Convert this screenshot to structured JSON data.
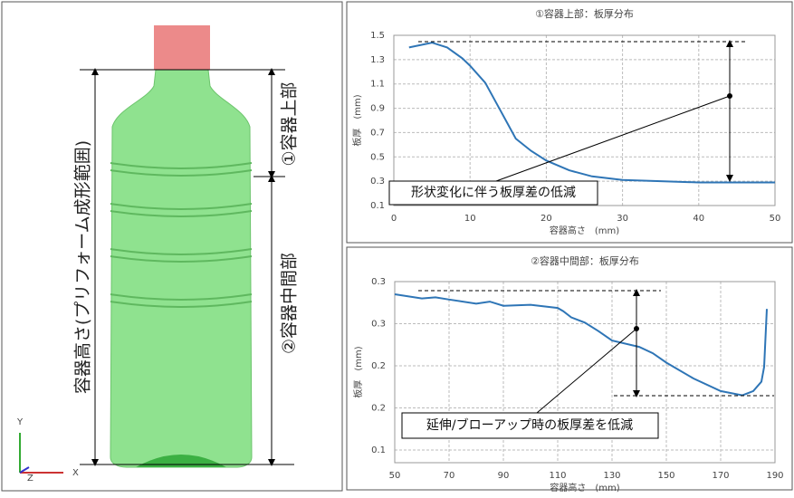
{
  "diagram": {
    "height_label": "容器高さ(プリフォーム成形範囲)",
    "upper_label": "①容器上部",
    "middle_label": "②容器中間部",
    "axis_y": "Y",
    "axis_x": "X",
    "axis_z": "Z"
  },
  "chart_data": [
    {
      "type": "line",
      "title": "①容器上部：板厚分布",
      "xlabel": "容器高さ　(mm)",
      "ylabel": "板厚　(mm)",
      "x": [
        2,
        5,
        7,
        9,
        10,
        12,
        14,
        16,
        18,
        20,
        23,
        26,
        30,
        35,
        40,
        45,
        50
      ],
      "values": [
        1.4,
        1.44,
        1.4,
        1.31,
        1.25,
        1.11,
        0.88,
        0.65,
        0.55,
        0.47,
        0.39,
        0.34,
        0.31,
        0.3,
        0.29,
        0.29,
        0.29
      ],
      "color": "#2e75b6",
      "xlim": [
        0,
        50
      ],
      "xticks": [
        0,
        10,
        20,
        30,
        40,
        50
      ],
      "ylim": [
        0.1,
        1.5
      ],
      "yticks": [
        0.1,
        0.3,
        0.5,
        0.7,
        0.9,
        1.1,
        1.3,
        1.5
      ],
      "grid": true,
      "annotation": "形状変化に伴う板厚差の低減"
    },
    {
      "type": "line",
      "title": "②容器中間部：板厚分布",
      "xlabel": "容器高さ　(mm)",
      "ylabel": "板厚　(mm)",
      "x": [
        50,
        60,
        65,
        70,
        80,
        85,
        90,
        100,
        110,
        112,
        115,
        120,
        125,
        130,
        140,
        145,
        150,
        160,
        170,
        178,
        182,
        185,
        186,
        187
      ],
      "values": [
        0.288,
        0.284,
        0.285,
        0.283,
        0.279,
        0.281,
        0.277,
        0.278,
        0.275,
        0.272,
        0.266,
        0.261,
        0.253,
        0.244,
        0.238,
        0.232,
        0.223,
        0.208,
        0.196,
        0.192,
        0.196,
        0.205,
        0.219,
        0.274
      ],
      "color": "#2e75b6",
      "xlim": [
        50,
        190
      ],
      "xticks": [
        50,
        70,
        90,
        110,
        130,
        150,
        170,
        190
      ],
      "ylim": [
        0.128,
        0.3
      ],
      "yticks": [
        {
          "value": 0.14,
          "label": "0.1"
        },
        {
          "value": 0.18,
          "label": "0.2"
        },
        {
          "value": 0.22,
          "label": "0.2"
        },
        {
          "value": 0.26,
          "label": "0.3"
        },
        {
          "value": 0.3,
          "label": "0.3"
        }
      ],
      "grid": true,
      "annotation": "延伸/ブローアップ時の板厚差を低減"
    }
  ]
}
